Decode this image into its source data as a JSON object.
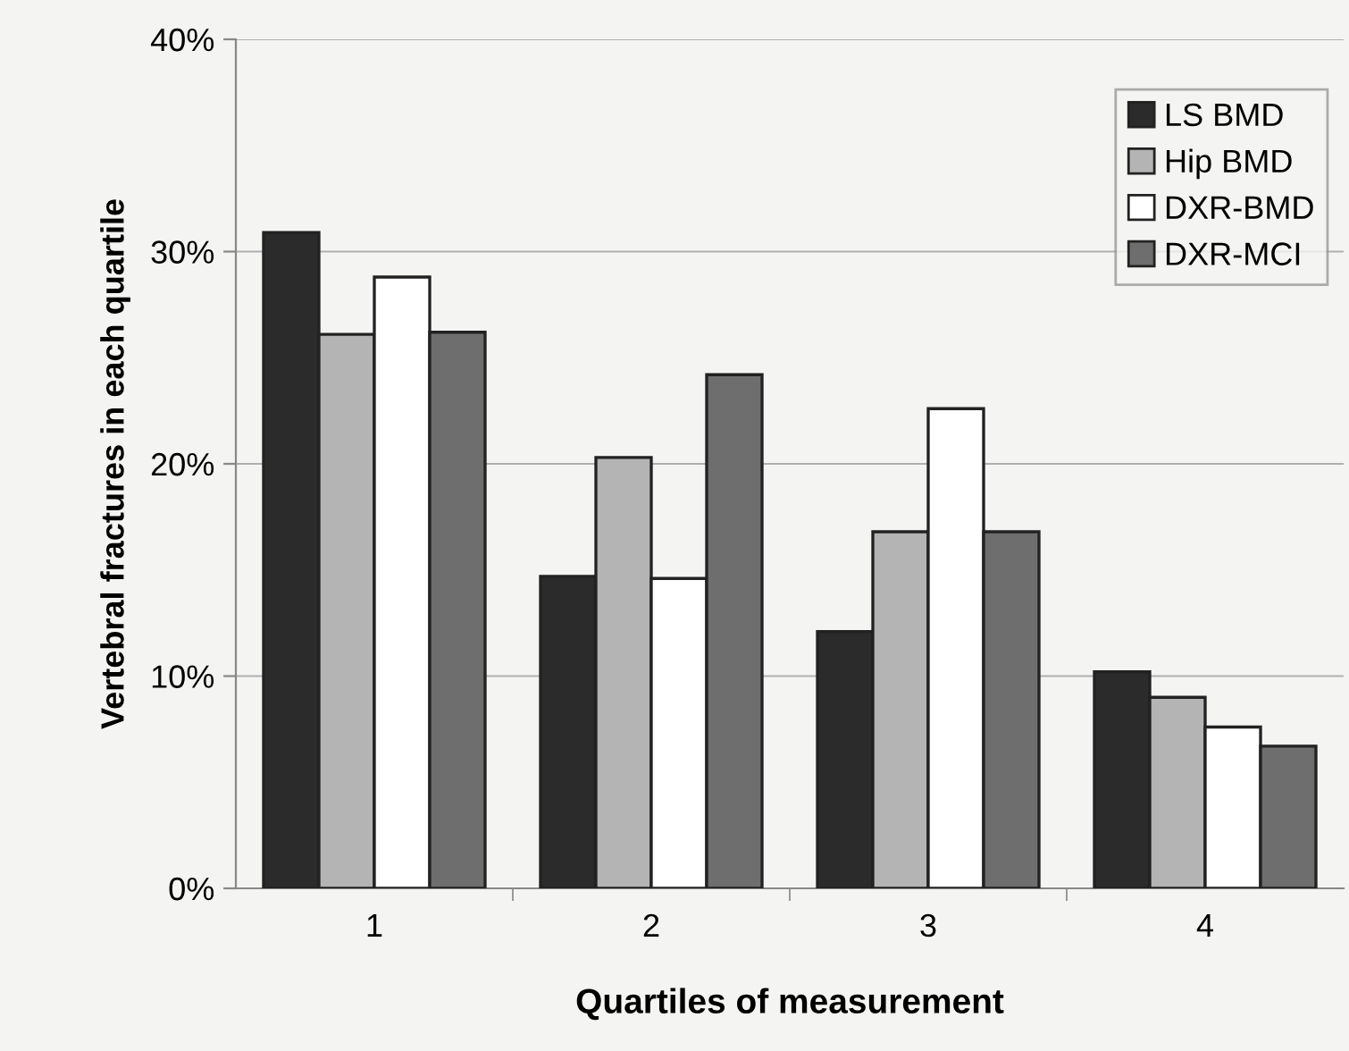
{
  "chart_data": {
    "type": "bar",
    "xlabel": "Quartiles of measurement",
    "ylabel": "Vertebral fractures in each quartile",
    "categories": [
      "1",
      "2",
      "3",
      "4"
    ],
    "series": [
      {
        "name": "LS BMD",
        "color": "#2b2b2b",
        "values": [
          30.9,
          14.7,
          12.1,
          10.2
        ]
      },
      {
        "name": "Hip BMD",
        "color": "#b4b4b4",
        "values": [
          26.1,
          20.3,
          16.8,
          9.0
        ]
      },
      {
        "name": "DXR-BMD",
        "color": "#ffffff",
        "values": [
          28.8,
          14.6,
          22.6,
          7.6
        ]
      },
      {
        "name": "DXR-MCI",
        "color": "#6e6e6e",
        "values": [
          26.2,
          24.2,
          16.8,
          6.7
        ]
      }
    ],
    "ylim": [
      0,
      40
    ],
    "yticks": [
      {
        "value": 0,
        "label": "0%"
      },
      {
        "value": 10,
        "label": "10%"
      },
      {
        "value": 20,
        "label": "20%"
      },
      {
        "value": 30,
        "label": "30%"
      },
      {
        "value": 40,
        "label": "40%"
      }
    ],
    "grid": "y",
    "legend": "top right"
  }
}
